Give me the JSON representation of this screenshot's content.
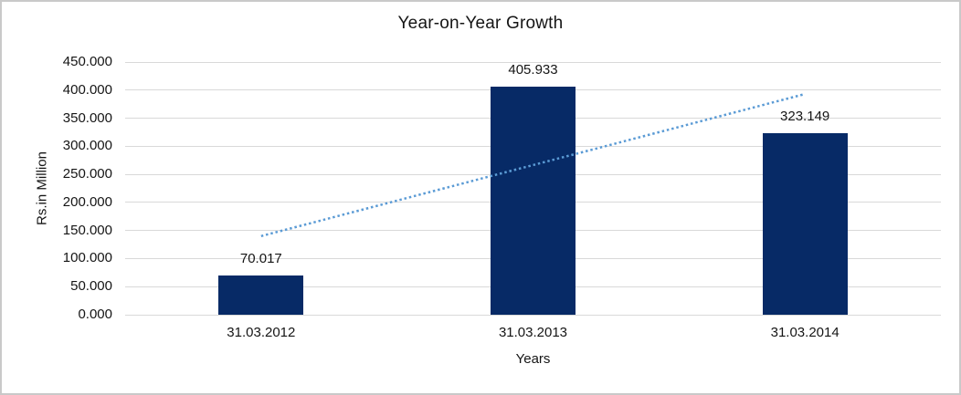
{
  "chart_data": {
    "type": "bar",
    "title": "Year-on-Year Growth",
    "xlabel": "Years",
    "ylabel": "Rs.in Million",
    "categories": [
      "31.03.2012",
      "31.03.2013",
      "31.03.2014"
    ],
    "values": [
      70.017,
      405.933,
      323.149
    ],
    "bar_labels": [
      "70.017",
      "405.933",
      "323.149"
    ],
    "ylim": [
      0,
      450
    ],
    "yticks": [
      0,
      50,
      100,
      150,
      200,
      250,
      300,
      350,
      400,
      450
    ],
    "ytick_labels": [
      "0.000",
      "50.000",
      "100.000",
      "150.000",
      "200.000",
      "250.000",
      "300.000",
      "350.000",
      "400.000",
      "450.000"
    ],
    "grid": true,
    "legend": "none",
    "trendline": {
      "style": "dotted",
      "start_value": 140,
      "end_value": 393
    },
    "colors": {
      "bar": "#072a66",
      "trend": "#5b9bd5",
      "gridline": "#d9d9d9",
      "text": "#151515",
      "frame_border": "#c9c9c9"
    }
  }
}
